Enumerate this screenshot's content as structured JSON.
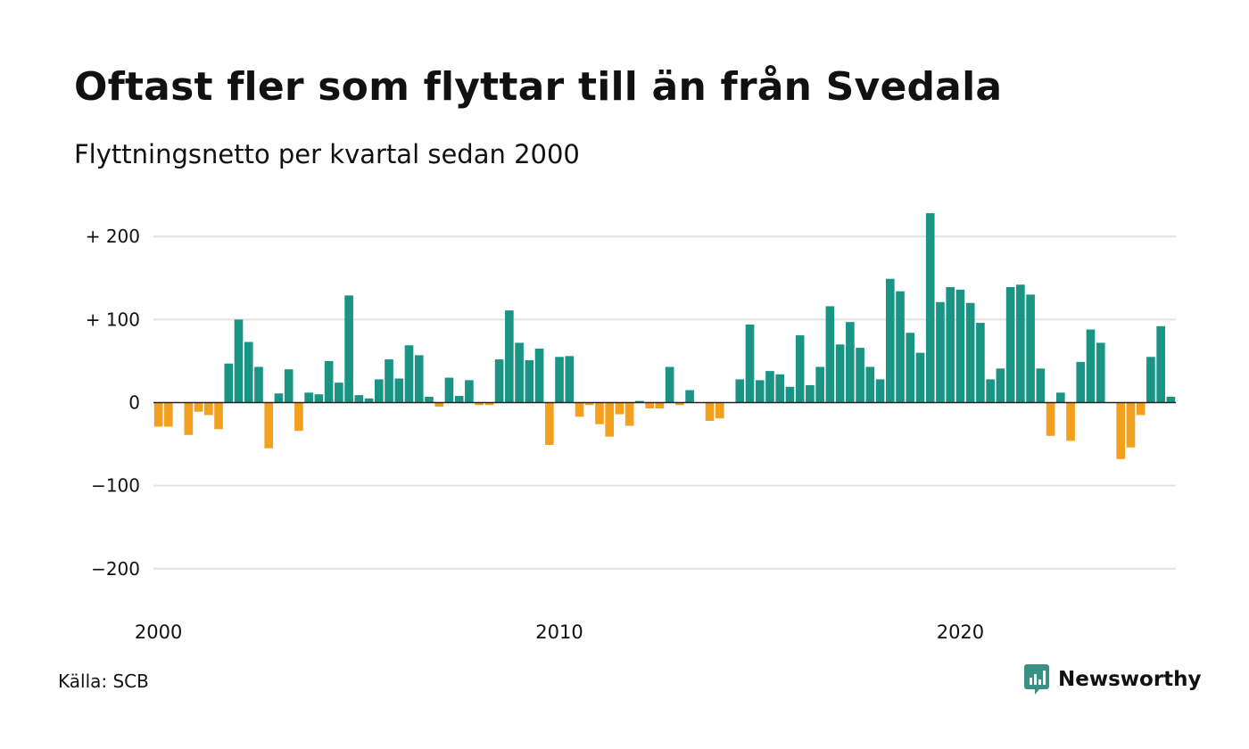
{
  "header": {
    "title": "Oftast fler som flyttar till än från Svedala",
    "subtitle": "Flyttningsnetto per kvartal sedan 2000"
  },
  "footer": {
    "source": "Källa: SCB",
    "brand": "Newsworthy"
  },
  "colors": {
    "positive": "#1a9485",
    "negative": "#f4a01f",
    "grid": "#e2e2e2",
    "zero_line": "#222222",
    "brand": "#3b8f85"
  },
  "chart_data": {
    "type": "bar",
    "title": "Oftast fler som flyttar till än från Svedala",
    "subtitle": "Flyttningsnetto per kvartal sedan 2000",
    "xlabel": "",
    "ylabel": "",
    "x_start": 2000,
    "x_step": 0.25,
    "x_ticks": [
      2000,
      2010,
      2020
    ],
    "x_tick_labels": [
      "2000",
      "2010",
      "2020"
    ],
    "y_ticks": [
      200,
      100,
      0,
      -100,
      -200
    ],
    "y_tick_labels": [
      "+ 200",
      "+ 100",
      "0",
      "−100",
      "−200"
    ],
    "ylim": [
      -230,
      230
    ],
    "xlim": [
      1999.875,
      2025.375
    ],
    "grid": true,
    "values": [
      -29,
      -29,
      0,
      -39,
      -11,
      -15,
      -32,
      47,
      100,
      73,
      43,
      -55,
      11,
      40,
      -34,
      12,
      10,
      50,
      24,
      129,
      9,
      5,
      28,
      52,
      29,
      69,
      57,
      7,
      -5,
      30,
      8,
      27,
      -3,
      -3,
      52,
      111,
      72,
      51,
      65,
      -51,
      55,
      56,
      -17,
      -3,
      -26,
      -41,
      -14,
      -28,
      2,
      -7,
      -7,
      43,
      -3,
      15,
      0,
      -22,
      -19,
      0,
      28,
      94,
      27,
      38,
      34,
      19,
      81,
      21,
      43,
      116,
      70,
      97,
      66,
      43,
      28,
      149,
      134,
      84,
      60,
      228,
      121,
      139,
      136,
      120,
      96,
      28,
      41,
      139,
      142,
      130,
      41,
      -40,
      12,
      -46,
      49,
      88,
      72,
      0,
      -68,
      -54,
      -15,
      55,
      92,
      7
    ]
  }
}
